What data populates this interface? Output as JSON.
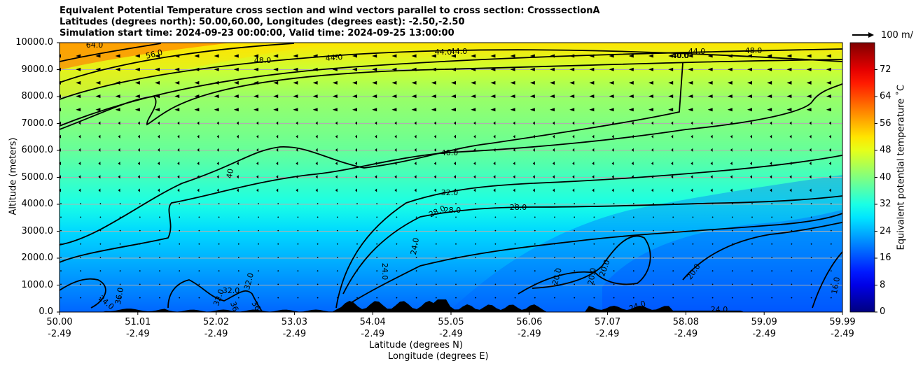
{
  "titles": {
    "line1": "Equivalent Potential Temperature cross section and wind vectors parallel to cross section: CrosssectionA",
    "line2": "Latitudes (degrees north): 50.00,60.00, Longitudes (degrees east): -2.50,-2.50",
    "line3": "Simulation start time: 2024-09-23 00:00:00, Valid time: 2024-09-25 13:00:00"
  },
  "chart_data": {
    "type": "heatmap",
    "ylabel": "Altitude (meters)",
    "xlabel_lat": "Latitude (degrees N)",
    "xlabel_lon": "Longitude (degrees E)",
    "ylim": [
      0,
      10000
    ],
    "y_ticks": [
      "0.0",
      "1000.0",
      "2000.0",
      "3000.0",
      "4000.0",
      "5000.0",
      "6000.0",
      "7000.0",
      "8000.0",
      "9000.0",
      "10000.0"
    ],
    "x_ticks_lat": [
      "50.00",
      "51.01",
      "52.02",
      "53.03",
      "54.04",
      "55.05",
      "56.06",
      "57.07",
      "58.08",
      "59.09",
      "59.99"
    ],
    "x_ticks_lon": [
      "-2.49",
      "-2.49",
      "-2.49",
      "-2.49",
      "-2.49",
      "-2.49",
      "-2.49",
      "-2.49",
      "-2.49",
      "-2.49",
      "-2.49"
    ],
    "grid": "horizontal",
    "colorbar": {
      "label": "Equivalent potential temperature ˚C",
      "range": [
        0,
        80
      ],
      "ticks": [
        "0",
        "8",
        "16",
        "24",
        "32",
        "40",
        "48",
        "56",
        "64",
        "72"
      ]
    },
    "quiver_key": "100 m/",
    "contour_labels": [
      "64.0",
      "56.0",
      "48.0",
      "44.0",
      "44.0",
      "44.0",
      "40.0",
      "44.0",
      "48.0",
      "40.0",
      "40.0",
      "32.0",
      "28.0",
      "28.0",
      "28.0",
      "24.0",
      "24.0",
      "20.0",
      "20.0",
      "20.0",
      "20.0",
      "16.0",
      "24.0",
      "24.0",
      "40",
      "36.0",
      "32.0",
      "32.0",
      "32.0",
      "36",
      "36",
      "24.0"
    ],
    "field_bands": [
      {
        "altitude": 10000,
        "value": 52
      },
      {
        "altitude": 9000,
        "value": 46
      },
      {
        "altitude": 8000,
        "value": 42
      },
      {
        "altitude": 7000,
        "value": 40
      },
      {
        "altitude": 6000,
        "value": 38
      },
      {
        "altitude": 5000,
        "value": 35
      },
      {
        "altitude": 4000,
        "value": 32
      },
      {
        "altitude": 3000,
        "value": 27
      },
      {
        "altitude": 2000,
        "value": 24
      },
      {
        "altitude": 1000,
        "value": 21
      },
      {
        "altitude": 0,
        "value": 18
      }
    ]
  }
}
